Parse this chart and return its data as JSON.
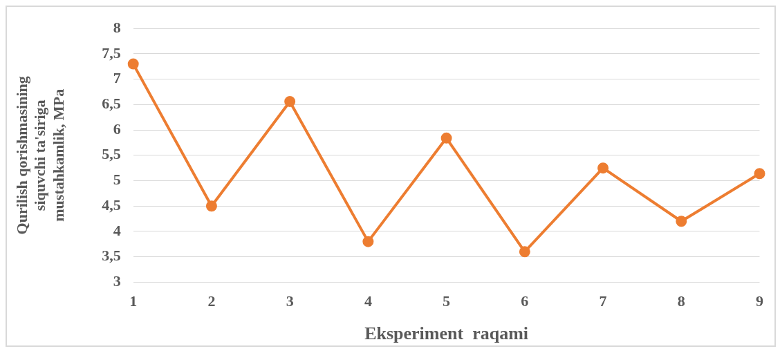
{
  "chart_data": {
    "type": "line",
    "xlabel": "Eksperiment  raqami",
    "ylabel": "Qurilish qorishmasining siquvchi ta'siriga mustahkamlik, MPa",
    "categories": [
      "1",
      "2",
      "3",
      "4",
      "5",
      "6",
      "7",
      "8",
      "9"
    ],
    "series": [
      {
        "color": "#ed7d31",
        "values": [
          7.3,
          4.5,
          6.56,
          3.8,
          5.84,
          3.6,
          5.25,
          4.2,
          5.14
        ]
      }
    ],
    "ylim": [
      3,
      8
    ],
    "yticks": [
      3,
      {
        "value": 3.5,
        "label": "3,5"
      },
      4,
      {
        "value": 4.5,
        "label": "4,5"
      },
      5,
      {
        "value": 5.5,
        "label": "5,5"
      },
      6,
      {
        "value": 6.5,
        "label": "6,5"
      },
      7,
      {
        "value": 7.5,
        "label": "7,5"
      },
      8
    ],
    "grid": "y",
    "legend": false,
    "marker": "circle",
    "line_style": "solid"
  }
}
